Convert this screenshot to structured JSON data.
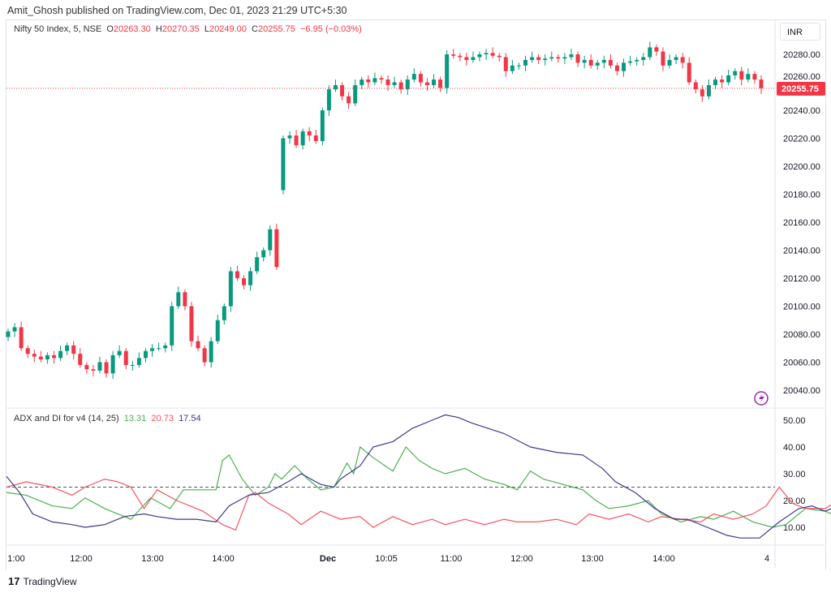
{
  "header": {
    "publisher": "Amit_Ghosh published on TradingView.com, Dec 01, 2023 21:29 UTC+5:30"
  },
  "legend": {
    "symbol": "Nifty 50 Index, 5, NSE",
    "o_label": "O",
    "o": "20263.30",
    "h_label": "H",
    "h": "20270.35",
    "l_label": "L",
    "l": "20249.00",
    "c_label": "C",
    "c": "20255.75",
    "change": "−6.95 (−0.03%)"
  },
  "currency": "INR",
  "indicator": {
    "name": "ADX and DI for v4 (14, 25)",
    "plus_di": "13.31",
    "minus_di": "20.73",
    "adx": "17.54"
  },
  "footer": {
    "brand": "TradingView"
  },
  "colors": {
    "up": "#089981",
    "down": "#f23645",
    "plus_di": "#4caf50",
    "minus_di": "#f7525f",
    "adx": "#3d3a8c"
  },
  "chart_data": [
    {
      "type": "candlestick",
      "title": "Nifty 50 Index, 5, NSE",
      "ylim": [
        20030,
        20295
      ],
      "yticks": [
        "20040.00",
        "20060.00",
        "20080.00",
        "20100.00",
        "20120.00",
        "20140.00",
        "20160.00",
        "20180.00",
        "20200.00",
        "20220.00",
        "20240.00",
        "20260.00",
        "20280.00"
      ],
      "last_price": "20255.75",
      "first_open": 20078,
      "closes": [
        20082,
        20085,
        20070,
        20066,
        20064,
        20062,
        20065,
        20063,
        20068,
        20072,
        20066,
        20058,
        20055,
        20054,
        20060,
        20052,
        20065,
        20068,
        20058,
        20058,
        20063,
        20068,
        20070,
        20070,
        20072,
        20100,
        20110,
        20100,
        20075,
        20070,
        20060,
        20075,
        20090,
        20100,
        20125,
        20120,
        20115,
        20125,
        20135,
        20140,
        20155,
        20128,
        20220,
        20222,
        20215,
        20225,
        20222,
        20218,
        20240,
        20255,
        20258,
        20250,
        20245,
        20258,
        20262,
        20260,
        20263,
        20262,
        20258,
        20260,
        20255,
        20262,
        20266,
        20260,
        20258,
        20262,
        20256,
        20280,
        20279,
        20278,
        20276,
        20278,
        20280,
        20281,
        20279,
        20278,
        20268,
        20272,
        20272,
        20276,
        20278,
        20276,
        20277,
        20278,
        20277,
        20278,
        20280,
        20274,
        20276,
        20272,
        20274,
        20276,
        20272,
        20268,
        20274,
        20275,
        20276,
        20278,
        20285,
        20282,
        20272,
        20276,
        20278,
        20274,
        20260,
        20255,
        20250,
        20258,
        20262,
        20260,
        20265,
        20268,
        20262,
        20266,
        20262,
        20255.75
      ],
      "gap_opens": {
        "42": 20183
      }
    },
    {
      "type": "line",
      "title": "ADX and DI for v4 (14, 25)",
      "ylim": [
        4,
        54
      ],
      "yticks": [
        "10.00",
        "20.00",
        "30.00",
        "40.00",
        "50.00"
      ],
      "threshold": 25,
      "xticks": [
        "1:00",
        "12:00",
        "13:00",
        "14:00",
        "Dec",
        "10:05",
        "11:00",
        "12:00",
        "13:00",
        "14:00",
        "4"
      ],
      "series": [
        {
          "name": "+DI",
          "values": [
            [
              0,
              23
            ],
            [
              3,
              22
            ],
            [
              7,
              18
            ],
            [
              10,
              17
            ],
            [
              12,
              21
            ],
            [
              15,
              17
            ],
            [
              19,
              13
            ],
            [
              22,
              21
            ],
            [
              25,
              17
            ],
            [
              27,
              24
            ],
            [
              32,
              24
            ],
            [
              33,
              35
            ],
            [
              34,
              37
            ],
            [
              36,
              28
            ],
            [
              38,
              22
            ],
            [
              40,
              25
            ],
            [
              41,
              30
            ],
            [
              42,
              28
            ],
            [
              44,
              33
            ],
            [
              46,
              28
            ],
            [
              48,
              24
            ],
            [
              50,
              25
            ],
            [
              52,
              34
            ],
            [
              53,
              30
            ],
            [
              54,
              40
            ],
            [
              56,
              36
            ],
            [
              59,
              31
            ],
            [
              61,
              40
            ],
            [
              63,
              35
            ],
            [
              65,
              32
            ],
            [
              67,
              30
            ],
            [
              70,
              32
            ],
            [
              73,
              28
            ],
            [
              76,
              26
            ],
            [
              78,
              24
            ],
            [
              80,
              31
            ],
            [
              82,
              28
            ],
            [
              85,
              26
            ],
            [
              88,
              24
            ],
            [
              90,
              20
            ],
            [
              92,
              17
            ],
            [
              95,
              18
            ],
            [
              98,
              20
            ],
            [
              100,
              15
            ],
            [
              103,
              12
            ],
            [
              106,
              14
            ],
            [
              108,
              13
            ],
            [
              111,
              16
            ],
            [
              114,
              12
            ],
            [
              117,
              10
            ],
            [
              119,
              11
            ],
            [
              122,
              17
            ],
            [
              125,
              16
            ],
            [
              128,
              13
            ]
          ]
        },
        {
          "name": "-DI",
          "values": [
            [
              0,
              25
            ],
            [
              3,
              27
            ],
            [
              7,
              25
            ],
            [
              10,
              22
            ],
            [
              12,
              25
            ],
            [
              15,
              28
            ],
            [
              17,
              27
            ],
            [
              19,
              25
            ],
            [
              21,
              17
            ],
            [
              23,
              24
            ],
            [
              26,
              20
            ],
            [
              30,
              16
            ],
            [
              33,
              11
            ],
            [
              35,
              9
            ],
            [
              37,
              22
            ],
            [
              38,
              23
            ],
            [
              40,
              19
            ],
            [
              43,
              15
            ],
            [
              45,
              11
            ],
            [
              48,
              16
            ],
            [
              51,
              13
            ],
            [
              54,
              14
            ],
            [
              56,
              10
            ],
            [
              59,
              14
            ],
            [
              62,
              11
            ],
            [
              65,
              13
            ],
            [
              67,
              11
            ],
            [
              70,
              13
            ],
            [
              73,
              11
            ],
            [
              76,
              13
            ],
            [
              78,
              12
            ],
            [
              81,
              12
            ],
            [
              84,
              13
            ],
            [
              87,
              11
            ],
            [
              89,
              15
            ],
            [
              92,
              13
            ],
            [
              95,
              15
            ],
            [
              98,
              12
            ],
            [
              100,
              14
            ],
            [
              103,
              13
            ],
            [
              106,
              12
            ],
            [
              108,
              15
            ],
            [
              111,
              13
            ],
            [
              114,
              15
            ],
            [
              116,
              18
            ],
            [
              118,
              25
            ],
            [
              120,
              19
            ],
            [
              122,
              17
            ],
            [
              125,
              17
            ],
            [
              127,
              20
            ]
          ]
        },
        {
          "name": "ADX",
          "values": [
            [
              0,
              29
            ],
            [
              2,
              23
            ],
            [
              4,
              15
            ],
            [
              7,
              12
            ],
            [
              10,
              11
            ],
            [
              12,
              10
            ],
            [
              15,
              11
            ],
            [
              18,
              14
            ],
            [
              21,
              15
            ],
            [
              23,
              14
            ],
            [
              26,
              13
            ],
            [
              29,
              13
            ],
            [
              32,
              12
            ],
            [
              34,
              18
            ],
            [
              37,
              22
            ],
            [
              40,
              23
            ],
            [
              43,
              27
            ],
            [
              45,
              30
            ],
            [
              48,
              26
            ],
            [
              50,
              25
            ],
            [
              51,
              28
            ],
            [
              54,
              33
            ],
            [
              56,
              40
            ],
            [
              59,
              42
            ],
            [
              62,
              47
            ],
            [
              65,
              50
            ],
            [
              67,
              52
            ],
            [
              69,
              51
            ],
            [
              71,
              49
            ],
            [
              76,
              45
            ],
            [
              80,
              40
            ],
            [
              84,
              38
            ],
            [
              88,
              37
            ],
            [
              91,
              32
            ],
            [
              93,
              27
            ],
            [
              96,
              23
            ],
            [
              99,
              17
            ],
            [
              102,
              13
            ],
            [
              104,
              13
            ],
            [
              107,
              10
            ],
            [
              110,
              7
            ],
            [
              112,
              6
            ],
            [
              115,
              6
            ],
            [
              118,
              12
            ],
            [
              121,
              17
            ],
            [
              123,
              18
            ],
            [
              125,
              16
            ],
            [
              127,
              18
            ]
          ]
        }
      ]
    }
  ]
}
